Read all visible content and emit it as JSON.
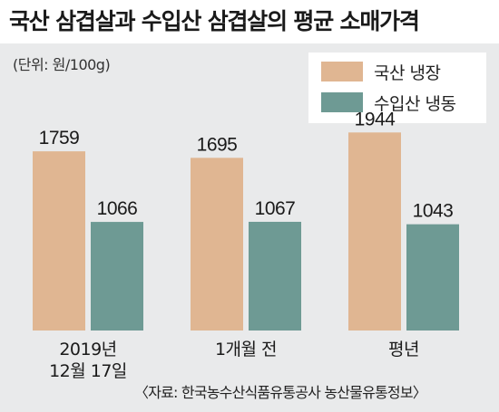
{
  "title": "국산 삼겹살과 수입산 삼겹살의 평균 소매가격",
  "unit": "(단위: 원/100g)",
  "source": "〈자료: 한국농수산식품유통공사 농산물유통정보〉",
  "colors": {
    "domestic": "#e0b692",
    "imported": "#6e9a94",
    "background": "#e9eaeb"
  },
  "chart_data": {
    "type": "bar",
    "title": "국산 삼겹살과 수입산 삼겹살의 평균 소매가격",
    "ylabel": "(단위: 원/100g)",
    "categories": [
      "2019년\n12월 17일",
      "1개월 전",
      "평년"
    ],
    "series": [
      {
        "name": "국산 냉장",
        "values": [
          1759,
          1695,
          1944
        ]
      },
      {
        "name": "수입산 냉동",
        "values": [
          1066,
          1067,
          1043
        ]
      }
    ],
    "ylim": [
      0,
      2000
    ],
    "grid": false,
    "legend": "top-right"
  }
}
